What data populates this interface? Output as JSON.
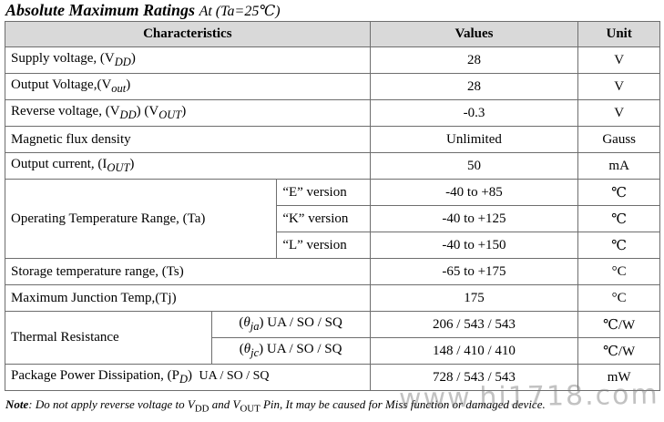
{
  "title": {
    "main": "Absolute Maximum Ratings",
    "sub": "At (Ta=25℃)"
  },
  "headers": {
    "characteristics": "Characteristics",
    "values": "Values",
    "unit": "Unit"
  },
  "rows": {
    "supply": {
      "label": "Supply voltage, (V",
      "sym_sub": "DD",
      "label_end": ")",
      "value": "28",
      "unit": "V"
    },
    "output_voltage": {
      "label": "Output Voltage,(V",
      "sym_sub": "out",
      "label_end": ")",
      "value": "28",
      "unit": "V"
    },
    "reverse": {
      "label": "Reverse voltage, (V",
      "sym_sub": "DD",
      "mid": ") (V",
      "sym_sub2": "OUT",
      "label_end": ")",
      "value": "-0.3",
      "unit": "V"
    },
    "flux": {
      "label": "Magnetic flux density",
      "value": "Unlimited",
      "unit": "Gauss"
    },
    "current": {
      "label": "Output current, (I",
      "sym_sub": "OUT",
      "label_end": ")",
      "value": "50",
      "unit": "mA"
    },
    "op_temp": {
      "label": "Operating Temperature Range, (Ta)",
      "versions": [
        {
          "name": "“E” version",
          "value": "-40 to +85",
          "unit": "℃"
        },
        {
          "name": "“K” version",
          "value": "-40 to +125",
          "unit": "℃"
        },
        {
          "name": "“L” version",
          "value": "-40 to +150",
          "unit": "℃"
        }
      ]
    },
    "storage": {
      "label": "Storage temperature range, (Ts)",
      "value": "-65 to +175",
      "unit": "°C"
    },
    "junction": {
      "label": "Maximum Junction Temp,(Tj)",
      "value": "175",
      "unit": "°C"
    },
    "thermal": {
      "label": "Thermal Resistance",
      "items": [
        {
          "sym": "θ",
          "sym_sub": "ja",
          "pkg": "UA / SO / SQ",
          "value": "206 / 543 / 543",
          "unit": "℃/W"
        },
        {
          "sym": "θ",
          "sym_sub": "jc",
          "pkg": "UA / SO / SQ",
          "value": "148 / 410 / 410",
          "unit": "℃/W"
        }
      ]
    },
    "power": {
      "label": "Package Power Dissipation, (P",
      "sym_sub": "D",
      "label_end": ")",
      "pkg": "UA / SO / SQ",
      "value": "728 / 543 / 543",
      "unit": "mW"
    }
  },
  "note": {
    "lead": "Note",
    "text1": ": Do not apply reverse voltage to V",
    "sub1": "DD",
    "text2": " and V",
    "sub2": "OUT",
    "text3": "  Pin, It may be ",
    "text4": "caused for Miss function or damaged device."
  },
  "watermark": "www.hi1718.com"
}
